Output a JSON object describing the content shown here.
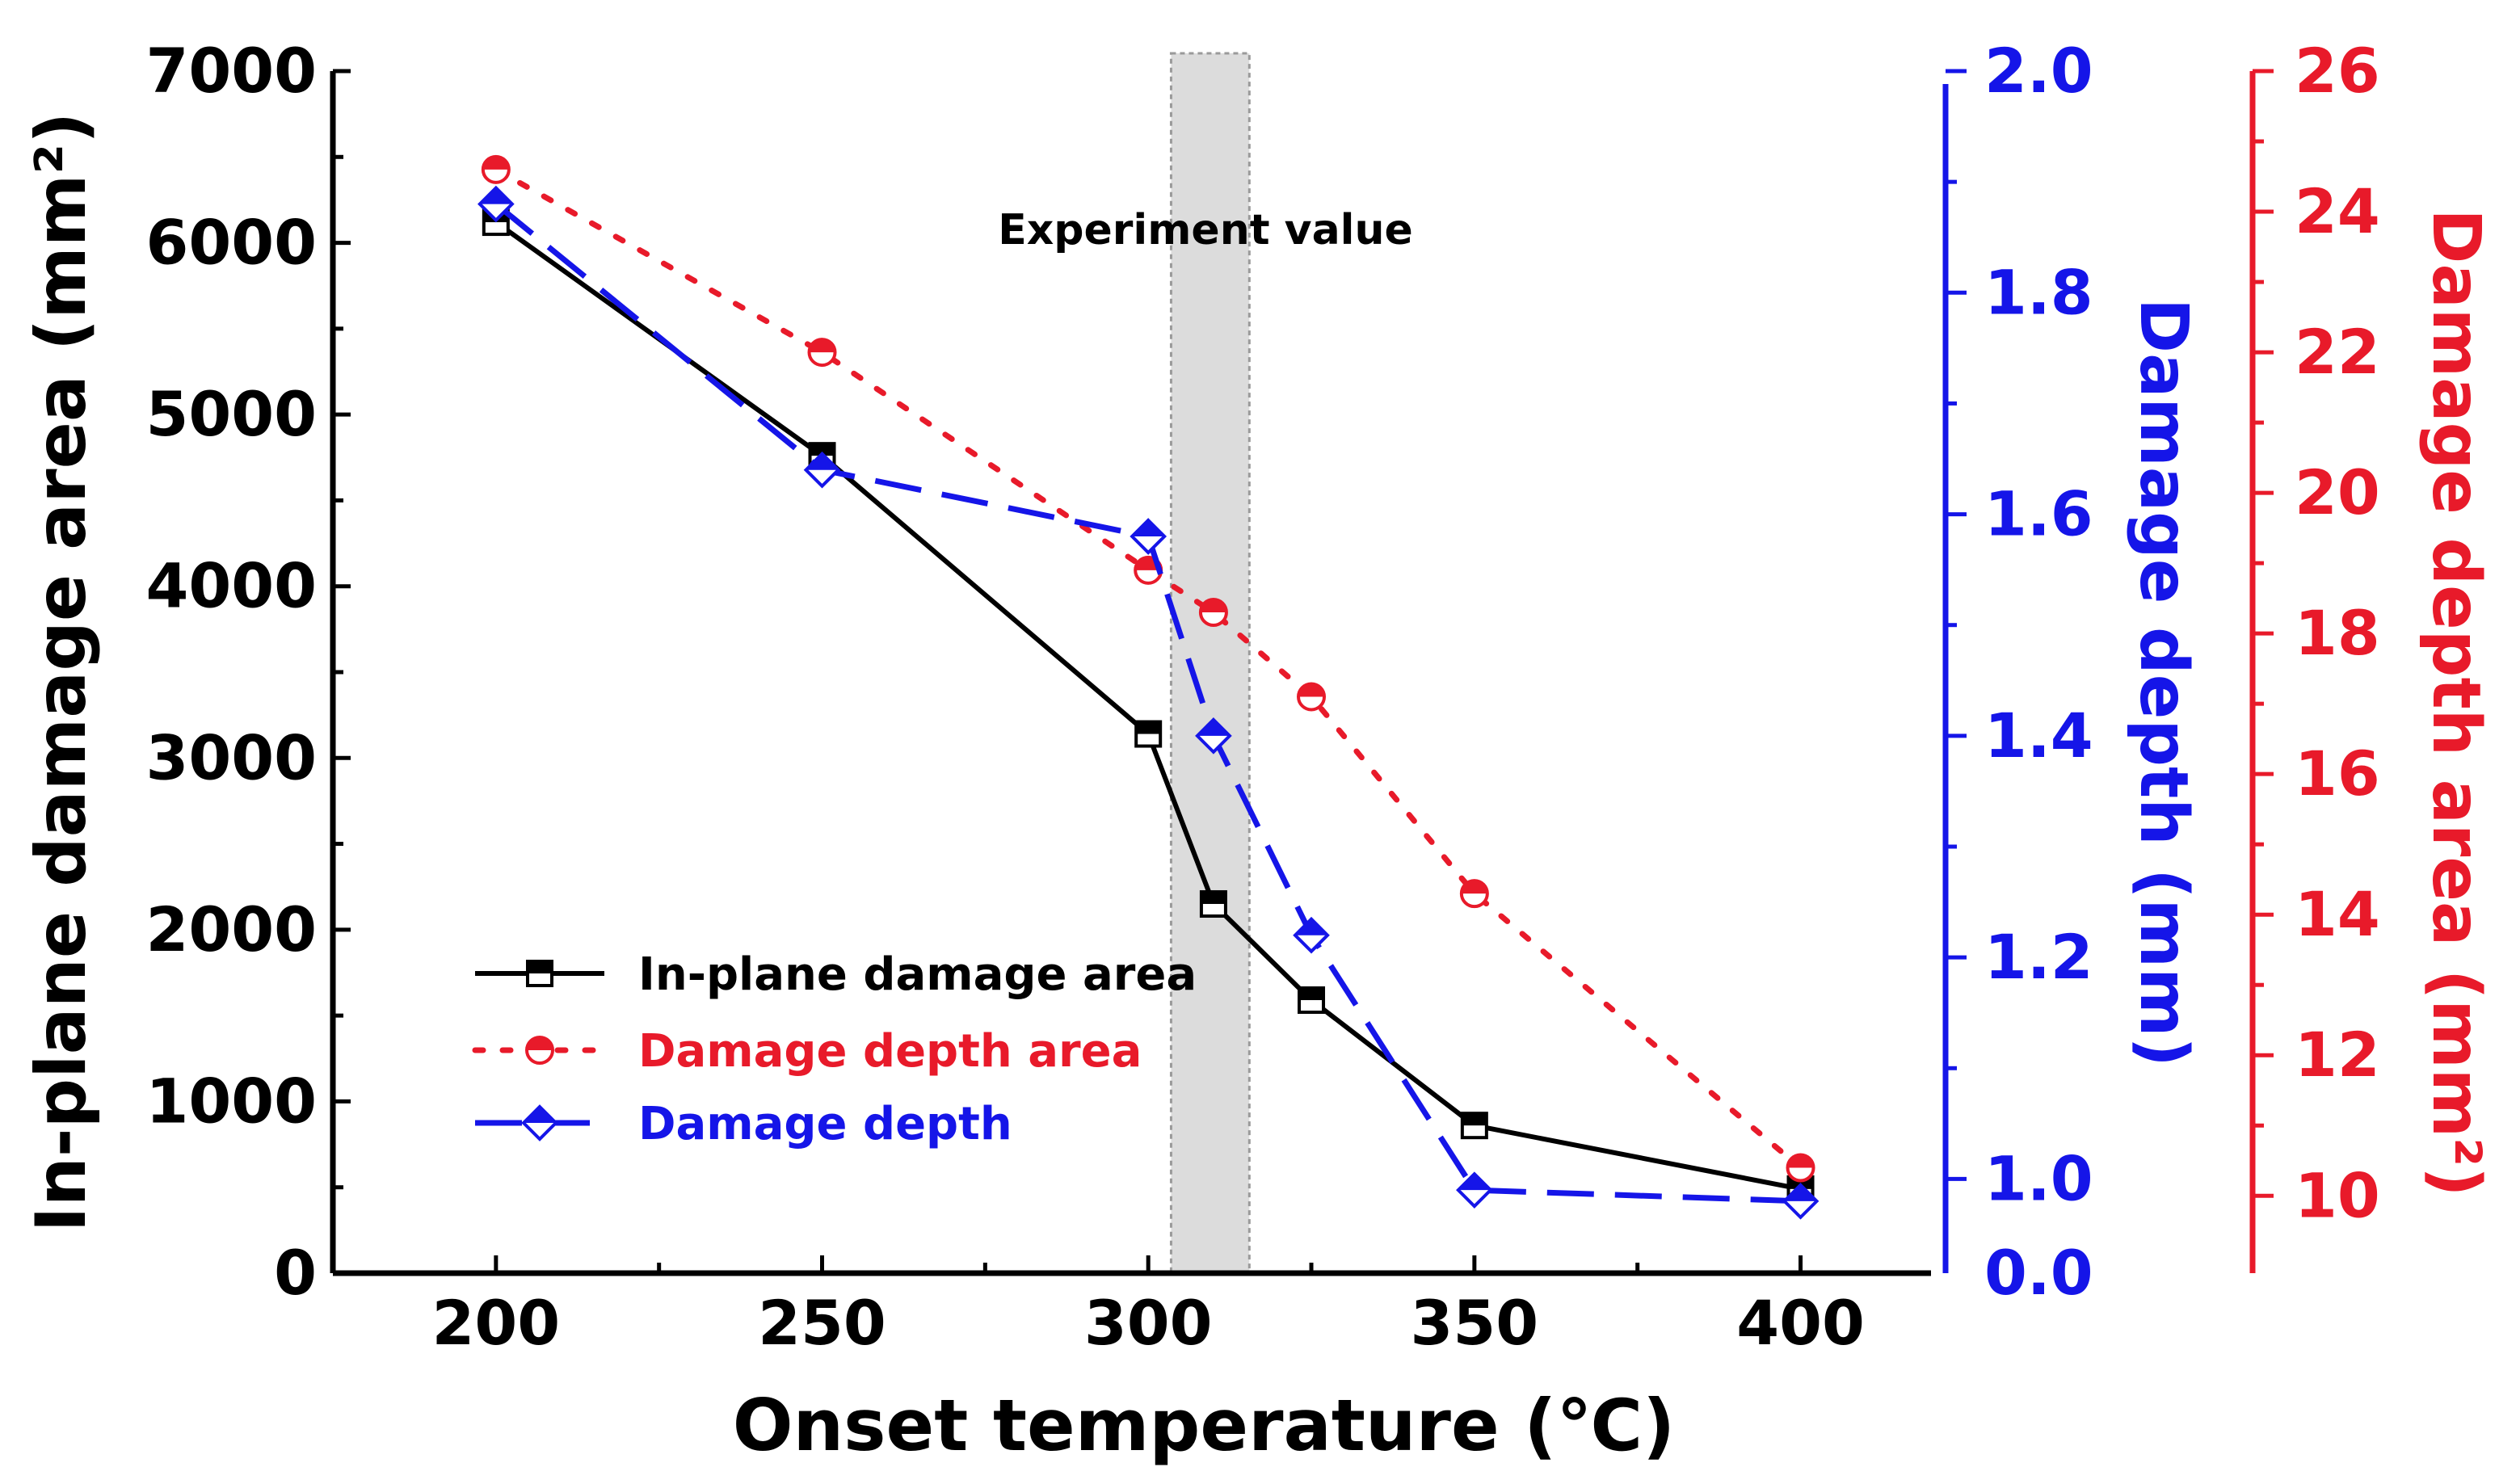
{
  "chart_data": {
    "type": "line",
    "xlabel": "Onset temperature (℃)",
    "xlim": [
      175,
      420
    ],
    "x_ticks": [
      "200",
      "250",
      "300",
      "350",
      "400"
    ],
    "y_axes": {
      "left": {
        "label": "In-plane damage area (mm²)",
        "lim": [
          0,
          7000
        ],
        "ticks": [
          "0",
          "1000",
          "2000",
          "3000",
          "4000",
          "5000",
          "6000",
          "7000"
        ],
        "color": "#000000"
      },
      "right_blue": {
        "label": "Damage depth (mm)",
        "lim": [
          0.915,
          2.0
        ],
        "ticks": [
          "0.0",
          "1.0",
          "1.2",
          "1.4",
          "1.6",
          "1.8",
          "2.0"
        ],
        "color": "#1515e8"
      },
      "right_red": {
        "label": "Damage depth area (mm²)",
        "lim": [
          8.9,
          26
        ],
        "ticks": [
          "10",
          "12",
          "14",
          "16",
          "18",
          "20",
          "22",
          "24",
          "26"
        ],
        "color": "#e81a2a"
      }
    },
    "shaded_region": {
      "x": [
        303.5,
        315.5
      ],
      "label": "Experiment value"
    },
    "series": [
      {
        "name": "In-plane damage area",
        "axis": "left",
        "color": "#000000",
        "marker": "square",
        "x": [
          200,
          250,
          300,
          310,
          325,
          350,
          400
        ],
        "y": [
          6120,
          4760,
          3140,
          2150,
          1590,
          860,
          490
        ]
      },
      {
        "name": "Damage depth area",
        "axis": "right_red",
        "color": "#e81a2a",
        "marker": "circle",
        "x": [
          200,
          250,
          300,
          310,
          325,
          350,
          400
        ],
        "y": [
          24.6,
          22.0,
          18.9,
          18.3,
          17.1,
          14.3,
          10.4
        ]
      },
      {
        "name": "Damage depth",
        "axis": "right_blue",
        "color": "#1515e8",
        "marker": "diamond",
        "x": [
          200,
          250,
          300,
          310,
          325,
          350,
          400
        ],
        "y": [
          1.88,
          1.64,
          1.58,
          1.4,
          1.22,
          0.99,
          0.98
        ]
      }
    ],
    "legend_position": "lower-left"
  }
}
